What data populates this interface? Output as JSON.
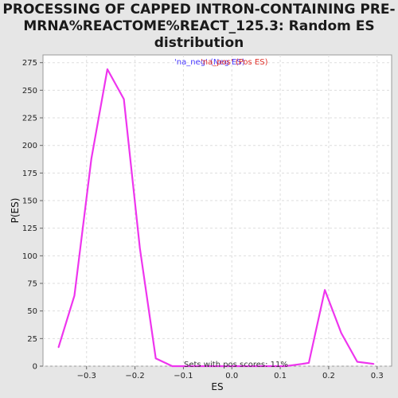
{
  "chart_data": {
    "type": "line",
    "title_lines": [
      "PROCESSING OF CAPPED INTRON-CONTAINING PRE-",
      "MRNA%REACTOME%REACT_125.3: Random ES",
      "distribution"
    ],
    "xlabel": "ES",
    "ylabel": "P(ES)",
    "xlim": [
      -0.39,
      0.33
    ],
    "ylim": [
      0,
      282
    ],
    "xticks": [
      -0.3,
      -0.2,
      -0.1,
      0.0,
      0.1,
      0.2,
      0.3
    ],
    "xtick_labels": [
      "−0.3",
      "−0.2",
      "−0.1",
      "0.0",
      "0.1",
      "0.2",
      "0.3"
    ],
    "yticks": [
      0,
      25,
      50,
      75,
      100,
      125,
      150,
      175,
      200,
      225,
      250,
      275
    ],
    "grid": true,
    "legend": [
      {
        "label": "'na_neg' (Neg ES)",
        "color": "#4a3aff"
      },
      {
        "label": "'na_pos' (Pos ES)",
        "color": "#e0312a"
      }
    ],
    "series": [
      {
        "color": "#ee35ee",
        "x": [
          -0.358,
          -0.325,
          -0.29,
          -0.257,
          -0.223,
          -0.19,
          -0.157,
          -0.123,
          -0.09,
          -0.057,
          -0.023,
          0.01,
          0.044,
          0.078,
          0.111,
          0.145,
          0.159,
          0.192,
          0.226,
          0.259,
          0.293
        ],
        "y": [
          17,
          64,
          188,
          269,
          242,
          107,
          7,
          0,
          0,
          0,
          0,
          0,
          0,
          0,
          0,
          2,
          3,
          69,
          30,
          4,
          2
        ]
      }
    ],
    "annotation": "Sets with pos scores: 11%"
  }
}
